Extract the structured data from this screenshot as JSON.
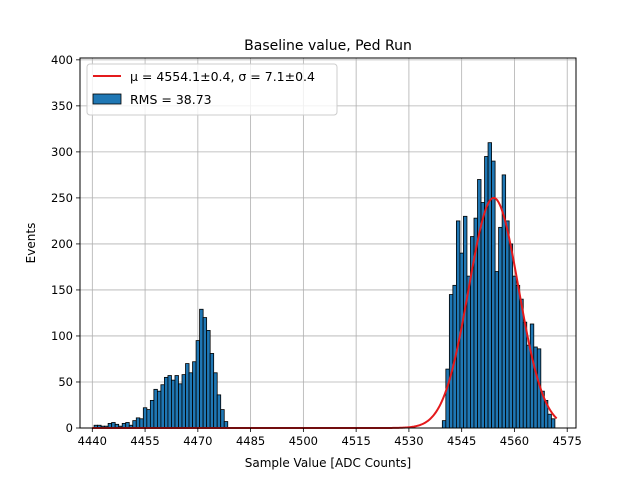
{
  "chart_data": {
    "type": "bar",
    "title": "Baseline value, Ped Run",
    "xlabel": "Sample Value [ADC Counts]",
    "ylabel": "Events",
    "xlim": [
      4436.5,
      4577.5
    ],
    "ylim": [
      0,
      402
    ],
    "xticks": [
      4440,
      4455,
      4470,
      4485,
      4500,
      4515,
      4530,
      4545,
      4560,
      4575
    ],
    "yticks": [
      0,
      50,
      100,
      150,
      200,
      250,
      300,
      350,
      400
    ],
    "grid": true,
    "legend_position": "top-left",
    "legend": {
      "fit_label": "μ = 4554.1±0.4, σ = 7.1±0.4",
      "hist_label": "RMS = 38.73"
    },
    "colors": {
      "bars": "#1f77b4",
      "fit": "#e41a1c",
      "edge": "#000000"
    },
    "histogram": {
      "bin_width": 1,
      "bins": [
        [
          4441,
          3
        ],
        [
          4442,
          3
        ],
        [
          4443,
          2
        ],
        [
          4444,
          2
        ],
        [
          4445,
          5
        ],
        [
          4446,
          6
        ],
        [
          4447,
          4
        ],
        [
          4448,
          2
        ],
        [
          4449,
          5
        ],
        [
          4450,
          6
        ],
        [
          4451,
          3
        ],
        [
          4452,
          8
        ],
        [
          4453,
          11
        ],
        [
          4454,
          10
        ],
        [
          4455,
          22
        ],
        [
          4456,
          20
        ],
        [
          4457,
          30
        ],
        [
          4458,
          42
        ],
        [
          4459,
          40
        ],
        [
          4460,
          47
        ],
        [
          4461,
          55
        ],
        [
          4462,
          57
        ],
        [
          4463,
          52
        ],
        [
          4464,
          57
        ],
        [
          4465,
          48
        ],
        [
          4466,
          58
        ],
        [
          4467,
          70
        ],
        [
          4468,
          60
        ],
        [
          4469,
          72
        ],
        [
          4470,
          95
        ],
        [
          4471,
          129
        ],
        [
          4472,
          120
        ],
        [
          4473,
          106
        ],
        [
          4474,
          81
        ],
        [
          4475,
          60
        ],
        [
          4476,
          36
        ],
        [
          4477,
          20
        ],
        [
          4478,
          7
        ],
        [
          4540,
          8
        ],
        [
          4541,
          64
        ],
        [
          4542,
          145
        ],
        [
          4543,
          155
        ],
        [
          4544,
          225
        ],
        [
          4545,
          190
        ],
        [
          4546,
          230
        ],
        [
          4547,
          165
        ],
        [
          4548,
          208
        ],
        [
          4549,
          228
        ],
        [
          4550,
          270
        ],
        [
          4551,
          245
        ],
        [
          4552,
          295
        ],
        [
          4553,
          310
        ],
        [
          4554,
          290
        ],
        [
          4555,
          170
        ],
        [
          4556,
          218
        ],
        [
          4557,
          275
        ],
        [
          4558,
          225
        ],
        [
          4559,
          200
        ],
        [
          4560,
          165
        ],
        [
          4561,
          155
        ],
        [
          4562,
          140
        ],
        [
          4563,
          115
        ],
        [
          4564,
          90
        ],
        [
          4565,
          113
        ],
        [
          4566,
          88
        ],
        [
          4567,
          86
        ],
        [
          4568,
          40
        ],
        [
          4569,
          30
        ],
        [
          4570,
          15
        ],
        [
          4571,
          10
        ]
      ]
    },
    "fit": {
      "mu": 4554.1,
      "sigma": 7.1,
      "amplitude": 250,
      "x_range": [
        4440,
        4572
      ]
    }
  }
}
